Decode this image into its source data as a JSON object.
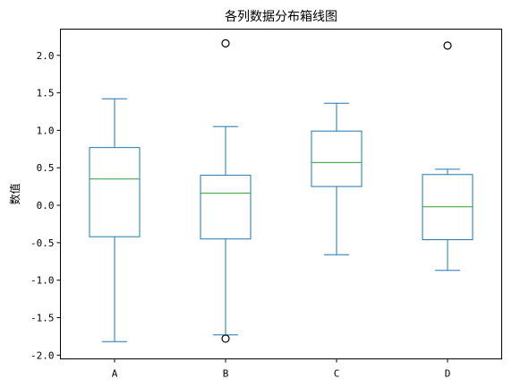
{
  "chart_data": {
    "type": "box",
    "title": "各列数据分布箱线图",
    "xlabel": "",
    "ylabel": "数值",
    "ylim": [
      -2.05,
      2.35
    ],
    "yticks": [
      "-2.0",
      "-1.5",
      "-1.0",
      "-0.5",
      "0.0",
      "0.5",
      "1.0",
      "1.5",
      "2.0"
    ],
    "categories": [
      "A",
      "B",
      "C",
      "D"
    ],
    "grid": false,
    "colors": {
      "box": "#1f77b4",
      "median": "#2ca02c",
      "flier": "#000000"
    },
    "boxes": [
      {
        "name": "A",
        "whisker_low": -1.82,
        "q1": -0.42,
        "median": 0.35,
        "q3": 0.77,
        "whisker_high": 1.42,
        "fliers": []
      },
      {
        "name": "B",
        "whisker_low": -1.73,
        "q1": -0.45,
        "median": 0.16,
        "q3": 0.4,
        "whisker_high": 1.05,
        "fliers": [
          2.16,
          -1.78
        ]
      },
      {
        "name": "C",
        "whisker_low": -0.66,
        "q1": 0.25,
        "median": 0.57,
        "q3": 0.99,
        "whisker_high": 1.36,
        "fliers": []
      },
      {
        "name": "D",
        "whisker_low": -0.87,
        "q1": -0.46,
        "median": -0.02,
        "q3": 0.41,
        "whisker_high": 0.48,
        "fliers": [
          2.13
        ]
      }
    ]
  }
}
